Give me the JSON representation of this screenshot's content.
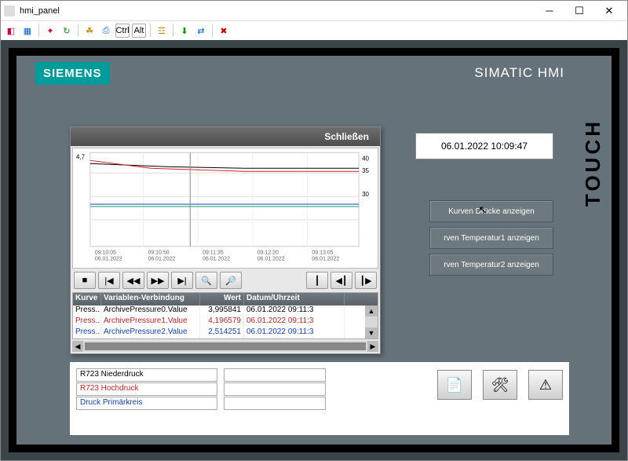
{
  "window": {
    "title": "hmi_panel"
  },
  "brand": "SIEMENS",
  "brand2": "SIMATIC HMI",
  "touch": "TOUCH",
  "datetime": "06.01.2022 10:09:47",
  "side_buttons": [
    "Kurven Drücke anzeigen",
    "rven Temperatur1 anzeigen",
    "rven Temperatur2 anzeigen"
  ],
  "popup": {
    "close": "Schließen",
    "chart": {
      "left_axis_top": "4,7",
      "right_ticks": [
        "40",
        "35",
        "30"
      ],
      "x_ticks": [
        {
          "t": "09:10:05",
          "d": "06.01.2022"
        },
        {
          "t": "09:10:50",
          "d": "06.01.2022"
        },
        {
          "t": "09:11:35",
          "d": "06.01.2022"
        },
        {
          "t": "09:12:20",
          "d": "06.01.2022"
        },
        {
          "t": "09:13:05",
          "d": "06.01.2022"
        }
      ],
      "series": [
        {
          "color": "#000000",
          "y": 22
        },
        {
          "color": "#d02020",
          "y": 26
        },
        {
          "color": "#1040c0",
          "y": 70
        },
        {
          "color": "#10a060",
          "y": 73
        }
      ]
    },
    "table": {
      "headers": [
        "Kurve",
        "Variablen-Verbindung",
        "Wert",
        "Datum/Uhrzeit"
      ],
      "rows": [
        {
          "c1": "Press..",
          "c2": "ArchivePressure0.Value",
          "c3": "3,995841",
          "c4": "06.01.2022 09:11:3",
          "color": "#000"
        },
        {
          "c1": "Press..",
          "c2": "ArchivePressure1.Value",
          "c3": "4,196579",
          "c4": "06.01.2022 09:11:3",
          "color": "#d02020"
        },
        {
          "c1": "Press..",
          "c2": "ArchivePressure2.Value",
          "c3": "2,514251",
          "c4": "06.01.2022 09:11:3",
          "color": "#1040c0"
        }
      ]
    }
  },
  "legend": [
    {
      "label": "R723 Niederdruck",
      "color": "#000"
    },
    {
      "label": "R723 Hochdruck",
      "color": "#d02020"
    },
    {
      "label": "Druck Primärkreis",
      "color": "#1040c0"
    }
  ]
}
